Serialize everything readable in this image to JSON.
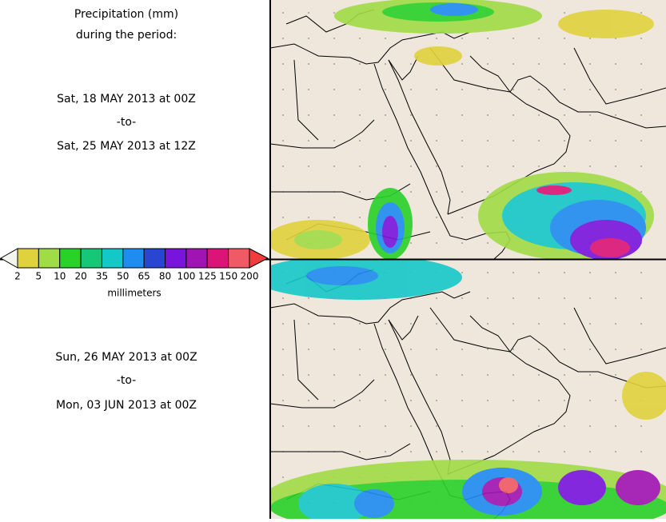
{
  "header": {
    "title_line1": "Precipitation (mm)",
    "title_line2": "during the period:"
  },
  "periods": [
    {
      "start": "Sat, 18 MAY 2013 at 00Z",
      "separator": "-to-",
      "end": "Sat, 25 MAY 2013 at 12Z"
    },
    {
      "start": "Sun, 26 MAY 2013 at 00Z",
      "separator": "-to-",
      "end": "Mon, 03 JUN 2013 at 00Z"
    }
  ],
  "colorbar": {
    "ticks": [
      2,
      5,
      10,
      20,
      35,
      50,
      65,
      80,
      100,
      125,
      150,
      200
    ],
    "colors": [
      "#e0d23c",
      "#a0dc46",
      "#28d228",
      "#14c878",
      "#14c8c8",
      "#1e8cf0",
      "#2846d2",
      "#7814dc",
      "#a014b4",
      "#dc1478",
      "#f05a64"
    ],
    "under_color": "#f5f5f0",
    "over_color": "#f03c3c",
    "unit": "millimeters"
  }
}
